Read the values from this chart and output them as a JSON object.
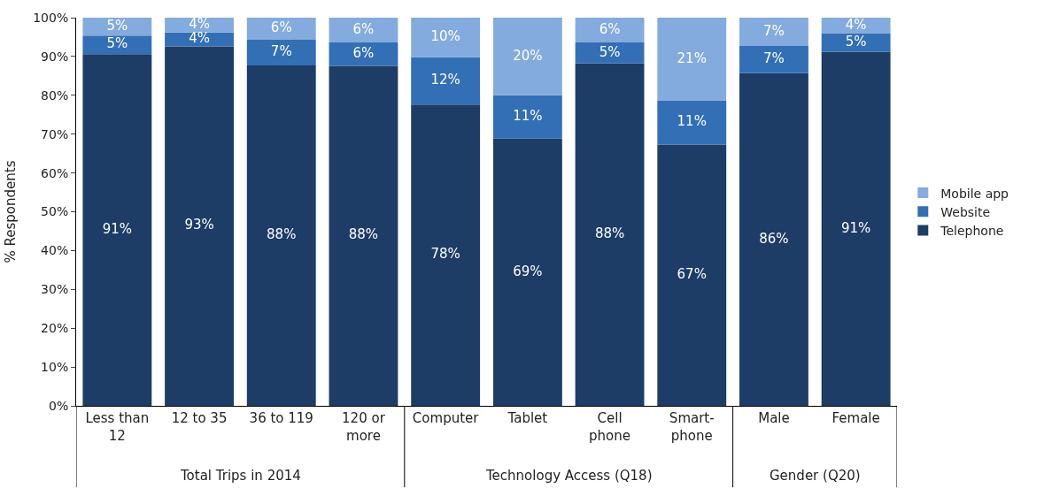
{
  "chart_data": {
    "type": "bar",
    "stacked": true,
    "ylabel": "% Respondents",
    "categories": [
      "Less than 12",
      "12 to 35",
      "36 to 119",
      "120 or more",
      "Computer",
      "Tablet",
      "Cell phone",
      "Smart-phone",
      "Male",
      "Female"
    ],
    "series": [
      {
        "name": "Telephone",
        "color": "#1d3c66",
        "values": [
          90.6,
          92.6,
          87.7,
          87.6,
          77.6,
          68.9,
          88.2,
          67.3,
          85.7,
          91.2
        ],
        "value_labels": [
          "91%",
          "93%",
          "88%",
          "88%",
          "78%",
          "69%",
          "88%",
          "67%",
          "86%",
          "91%"
        ]
      },
      {
        "name": "Website",
        "color": "#336fb5",
        "values": [
          4.8,
          3.6,
          6.6,
          6.0,
          12.2,
          11.1,
          5.4,
          11.4,
          7.0,
          4.8
        ],
        "value_labels": [
          "5%",
          "4%",
          "7%",
          "6%",
          "12%",
          "11%",
          "5%",
          "11%",
          "7%",
          "5%"
        ]
      },
      {
        "name": "Mobile app",
        "color": "#84abdd",
        "values": [
          4.6,
          3.8,
          5.7,
          6.4,
          10.2,
          20.0,
          6.4,
          21.3,
          7.3,
          4.0
        ],
        "value_labels": [
          "5%",
          "4%",
          "6%",
          "6%",
          "10%",
          "20%",
          "6%",
          "21%",
          "7%",
          "4%"
        ]
      }
    ],
    "ylim": [
      0,
      100
    ],
    "yticks": [
      {
        "value": 0,
        "label": "0%"
      },
      {
        "value": 10,
        "label": "10%"
      },
      {
        "value": 20,
        "label": "20%"
      },
      {
        "value": 30,
        "label": "30%"
      },
      {
        "value": 40,
        "label": "40%"
      },
      {
        "value": 50,
        "label": "50%"
      },
      {
        "value": 60,
        "label": "60%"
      },
      {
        "value": 70,
        "label": "70%"
      },
      {
        "value": 80,
        "label": "80%"
      },
      {
        "value": 90,
        "label": "90%"
      },
      {
        "value": 100,
        "label": "100%"
      }
    ],
    "annotations": [
      "Total Trips in 2014",
      "Technology Access (Q18)",
      "Gender (Q20)"
    ],
    "legend": "right"
  }
}
